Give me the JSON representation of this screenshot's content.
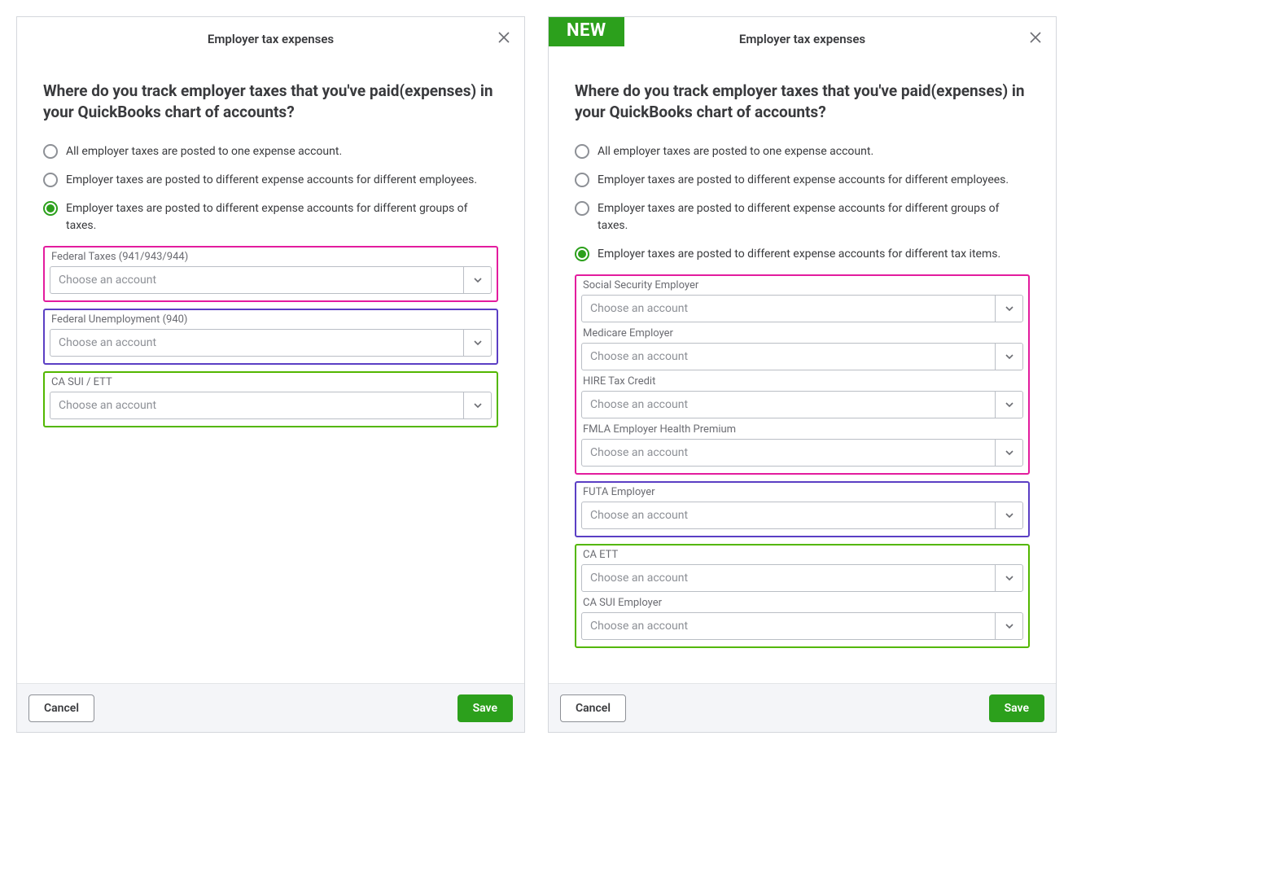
{
  "colors": {
    "brand_green": "#2ca01c",
    "pink_border": "#e31c9e",
    "purple_border": "#5b3fc4",
    "green_border": "#53b700"
  },
  "common": {
    "title": "Employer tax expenses",
    "question": "Where do you track employer taxes that you've paid(expenses) in your QuickBooks chart of accounts?",
    "select_placeholder": "Choose an account",
    "cancel_label": "Cancel",
    "save_label": "Save",
    "new_badge": "NEW"
  },
  "left": {
    "options": [
      {
        "label": "All employer taxes are posted to one expense account.",
        "selected": false
      },
      {
        "label": "Employer taxes are posted to different expense accounts for different employees.",
        "selected": false
      },
      {
        "label": "Employer taxes are posted to different expense accounts for different groups of taxes.",
        "selected": true
      }
    ],
    "groups": [
      {
        "border": "#e31c9e",
        "fields": [
          "Federal Taxes (941/943/944)"
        ]
      },
      {
        "border": "#5b3fc4",
        "fields": [
          "Federal Unemployment (940)"
        ]
      },
      {
        "border": "#53b700",
        "fields": [
          "CA SUI / ETT"
        ]
      }
    ]
  },
  "right": {
    "options": [
      {
        "label": "All employer taxes are posted to one expense account.",
        "selected": false
      },
      {
        "label": "Employer taxes are posted to different expense accounts for different employees.",
        "selected": false
      },
      {
        "label": "Employer taxes are posted to different expense accounts for different groups of taxes.",
        "selected": false
      },
      {
        "label": "Employer taxes are posted to different expense accounts for different tax items.",
        "selected": true
      }
    ],
    "groups": [
      {
        "border": "#e31c9e",
        "fields": [
          "Social Security Employer",
          "Medicare Employer",
          "HIRE Tax Credit",
          "FMLA Employer Health Premium"
        ]
      },
      {
        "border": "#5b3fc4",
        "fields": [
          "FUTA Employer"
        ]
      },
      {
        "border": "#53b700",
        "fields": [
          "CA ETT",
          "CA SUI Employer"
        ]
      }
    ]
  }
}
